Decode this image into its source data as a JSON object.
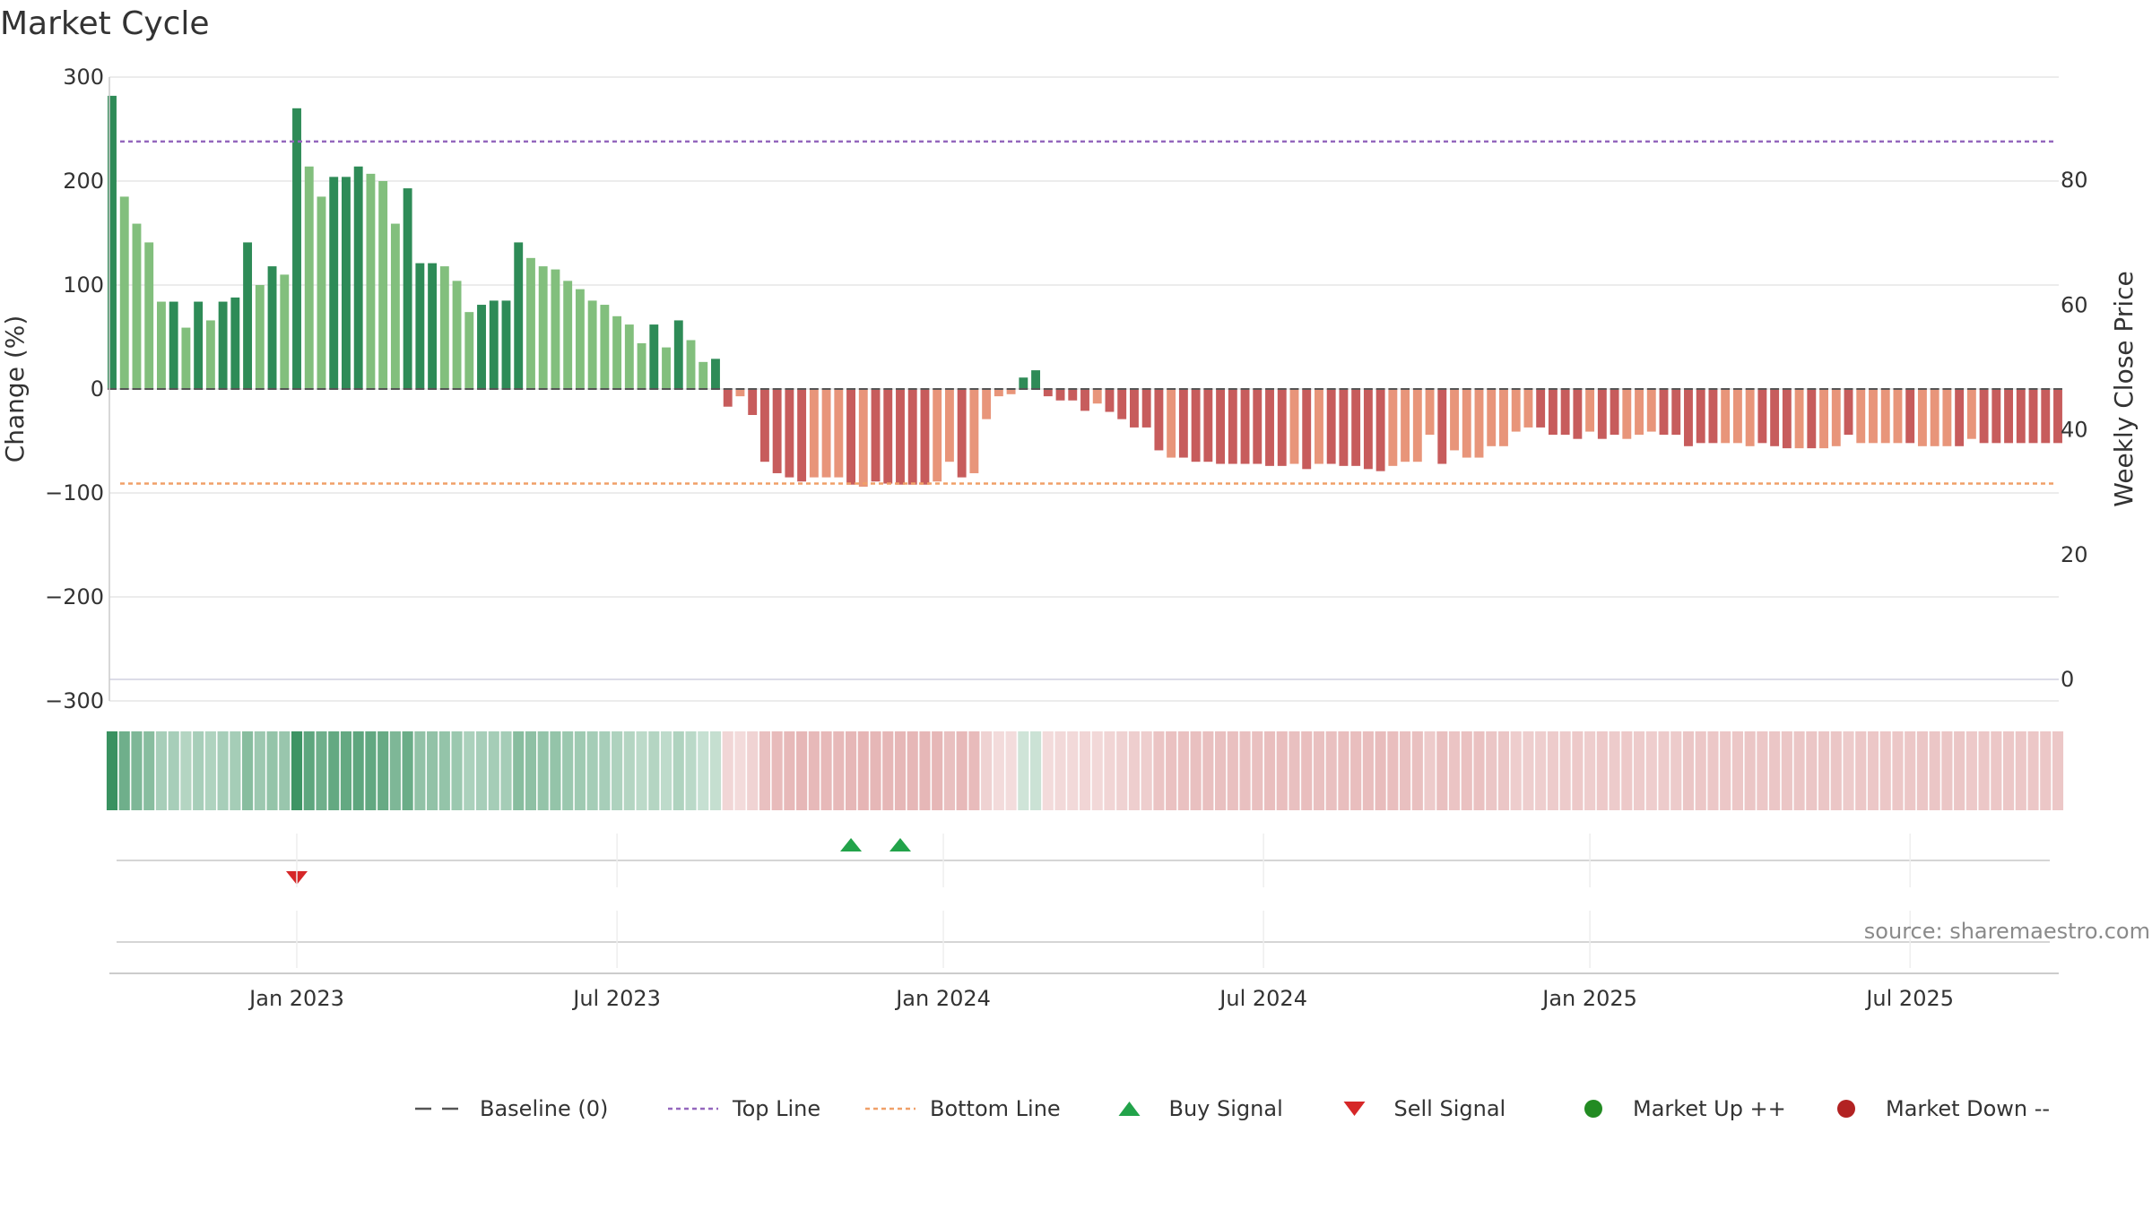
{
  "title": "Market Cycle",
  "source": "source: sharemaestro.com",
  "colors": {
    "up_strong": "#2e8b57",
    "up_light": "#82bf7d",
    "down_strong": "#c75c5c",
    "down_light": "#e8957a",
    "top_line": "#9467bd",
    "bottom_line": "#f0a068",
    "baseline": "#555555",
    "grid": "#e6e6e6",
    "buy": "#22a34a",
    "sell": "#d62728",
    "market_up": "#228b22",
    "market_down": "#b22222"
  },
  "legend": [
    {
      "label": "Baseline (0)",
      "symbol": "dash",
      "color_key": "baseline"
    },
    {
      "label": "Top Line",
      "symbol": "dotted",
      "color_key": "top_line"
    },
    {
      "label": "Bottom Line",
      "symbol": "dotted",
      "color_key": "bottom_line"
    },
    {
      "label": "Buy Signal",
      "symbol": "triangle-up",
      "color_key": "buy"
    },
    {
      "label": "Sell Signal",
      "symbol": "triangle-down",
      "color_key": "sell"
    },
    {
      "label": "Market Up ++",
      "symbol": "circle",
      "color_key": "market_up"
    },
    {
      "label": "Market Down --",
      "symbol": "circle",
      "color_key": "market_down"
    }
  ],
  "chart_data": {
    "type": "bar",
    "title": "Market Cycle",
    "ylabel": "Change (%)",
    "y2label": "Weekly Close Price",
    "ylim": [
      -300,
      300
    ],
    "y2lim": [
      0,
      93.3
    ],
    "yticks": [
      300,
      200,
      100,
      0,
      -100,
      -200,
      -300
    ],
    "yticklabels": [
      "300",
      "200",
      "100",
      "0",
      "−100",
      "−200",
      "−300"
    ],
    "y2ticks": [
      80,
      60,
      40,
      20,
      0
    ],
    "xticks": [
      {
        "label": "Jan 2023",
        "week": 15
      },
      {
        "label": "Jul 2023",
        "week": 41
      },
      {
        "label": "Jan 2024",
        "week": 67.5
      },
      {
        "label": "Jul 2024",
        "week": 93.5
      },
      {
        "label": "Jan 2025",
        "week": 120
      },
      {
        "label": "Jul 2025",
        "week": 146
      }
    ],
    "top_line": 238,
    "bottom_line": -91,
    "baseline": 0,
    "values": [
      282,
      185,
      159,
      141,
      84,
      84,
      59,
      84,
      66,
      84,
      88,
      141,
      100,
      118,
      110,
      270,
      214,
      185,
      204,
      204,
      214,
      207,
      200,
      159,
      193,
      121,
      121,
      118,
      104,
      74,
      81,
      85,
      85,
      141,
      126,
      118,
      115,
      104,
      96,
      85,
      81,
      70,
      62,
      44,
      62,
      40,
      66,
      47,
      26,
      29,
      -17,
      -7,
      -25,
      -70,
      -81,
      -85,
      -89,
      -85,
      -85,
      -85,
      -92,
      -94,
      -89,
      -91,
      -92,
      -92,
      -92,
      -89,
      -70,
      -85,
      -81,
      -29,
      -7,
      -5,
      11,
      18,
      -7,
      -11,
      -11,
      -21,
      -14,
      -22,
      -29,
      -37,
      -37,
      -59,
      -66,
      -66,
      -70,
      -70,
      -72,
      -72,
      -72,
      -72,
      -74,
      -74,
      -72,
      -77,
      -72,
      -72,
      -74,
      -74,
      -77,
      -79,
      -74,
      -70,
      -70,
      -44,
      -72,
      -59,
      -66,
      -66,
      -55,
      -55,
      -41,
      -37,
      -37,
      -44,
      -44,
      -48,
      -41,
      -48,
      -44,
      -48,
      -44,
      -41,
      -44,
      -44,
      -55,
      -52,
      -52,
      -52,
      -52,
      -55,
      -52,
      -55,
      -57,
      -57,
      -57,
      -57,
      -55,
      -44,
      -52,
      -52,
      -52,
      -52,
      -52,
      -55,
      -55,
      -55,
      -55,
      -48,
      -52,
      -52,
      -52,
      -52,
      -52,
      -52,
      -52
    ],
    "shades": [
      1,
      0,
      0,
      0,
      0,
      1,
      0,
      1,
      0,
      1,
      1,
      1,
      0,
      1,
      0,
      1,
      0,
      0,
      1,
      1,
      1,
      0,
      0,
      0,
      1,
      1,
      1,
      0,
      0,
      0,
      1,
      1,
      1,
      1,
      0,
      0,
      0,
      0,
      0,
      0,
      0,
      0,
      0,
      0,
      1,
      0,
      1,
      0,
      0,
      1,
      1,
      0,
      1,
      1,
      1,
      1,
      1,
      0,
      0,
      0,
      1,
      0,
      1,
      1,
      1,
      1,
      1,
      0,
      0,
      1,
      0,
      0,
      0,
      0,
      1,
      1,
      1,
      1,
      1,
      1,
      0,
      1,
      1,
      1,
      1,
      1,
      0,
      1,
      1,
      1,
      1,
      1,
      1,
      1,
      1,
      1,
      0,
      1,
      0,
      1,
      1,
      1,
      1,
      1,
      0,
      0,
      0,
      0,
      1,
      0,
      0,
      0,
      0,
      0,
      0,
      0,
      1,
      1,
      1,
      1,
      0,
      1,
      1,
      0,
      0,
      0,
      1,
      1,
      1,
      1,
      1,
      0,
      0,
      0,
      1,
      1,
      1,
      0,
      1,
      0,
      0,
      1,
      0,
      0,
      0,
      0,
      1,
      0,
      0,
      0,
      1,
      0,
      1,
      1,
      1,
      1,
      1,
      1,
      1
    ],
    "buy_signals": [
      60,
      64
    ],
    "sell_signals": [
      15
    ],
    "weekly_close_price": []
  }
}
